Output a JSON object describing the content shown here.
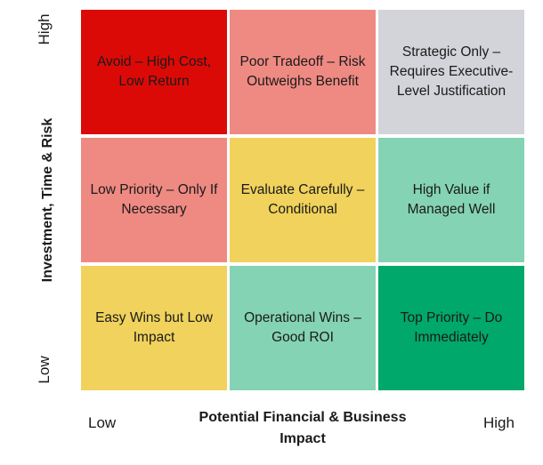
{
  "y_axis": {
    "title": "Investment, Time & Risk",
    "high_label": "High",
    "low_label": "Low"
  },
  "x_axis": {
    "title": "Potential Financial & Business Impact",
    "low_label": "Low",
    "high_label": "High"
  },
  "cells": [
    {
      "label": "Avoid – High Cost, Low Return",
      "color": "#dc0a07"
    },
    {
      "label": "Poor Tradeoff – Risk Outweighs Benefit",
      "color": "#ef8a83"
    },
    {
      "label": "Strategic Only – Requires Executive-Level Justification",
      "color": "#d2d4d9"
    },
    {
      "label": "Low Priority – Only If Necessary",
      "color": "#ef8a83"
    },
    {
      "label": "Evaluate Carefully – Conditional",
      "color": "#f0d25c"
    },
    {
      "label": "High Value if Managed Well",
      "color": "#84d3b5"
    },
    {
      "label": "Easy Wins but Low Impact",
      "color": "#f0d25c"
    },
    {
      "label": "Operational Wins – Good ROI",
      "color": "#84d3b5"
    },
    {
      "label": "Top Priority – Do Immediately",
      "color": "#00a86b"
    }
  ]
}
